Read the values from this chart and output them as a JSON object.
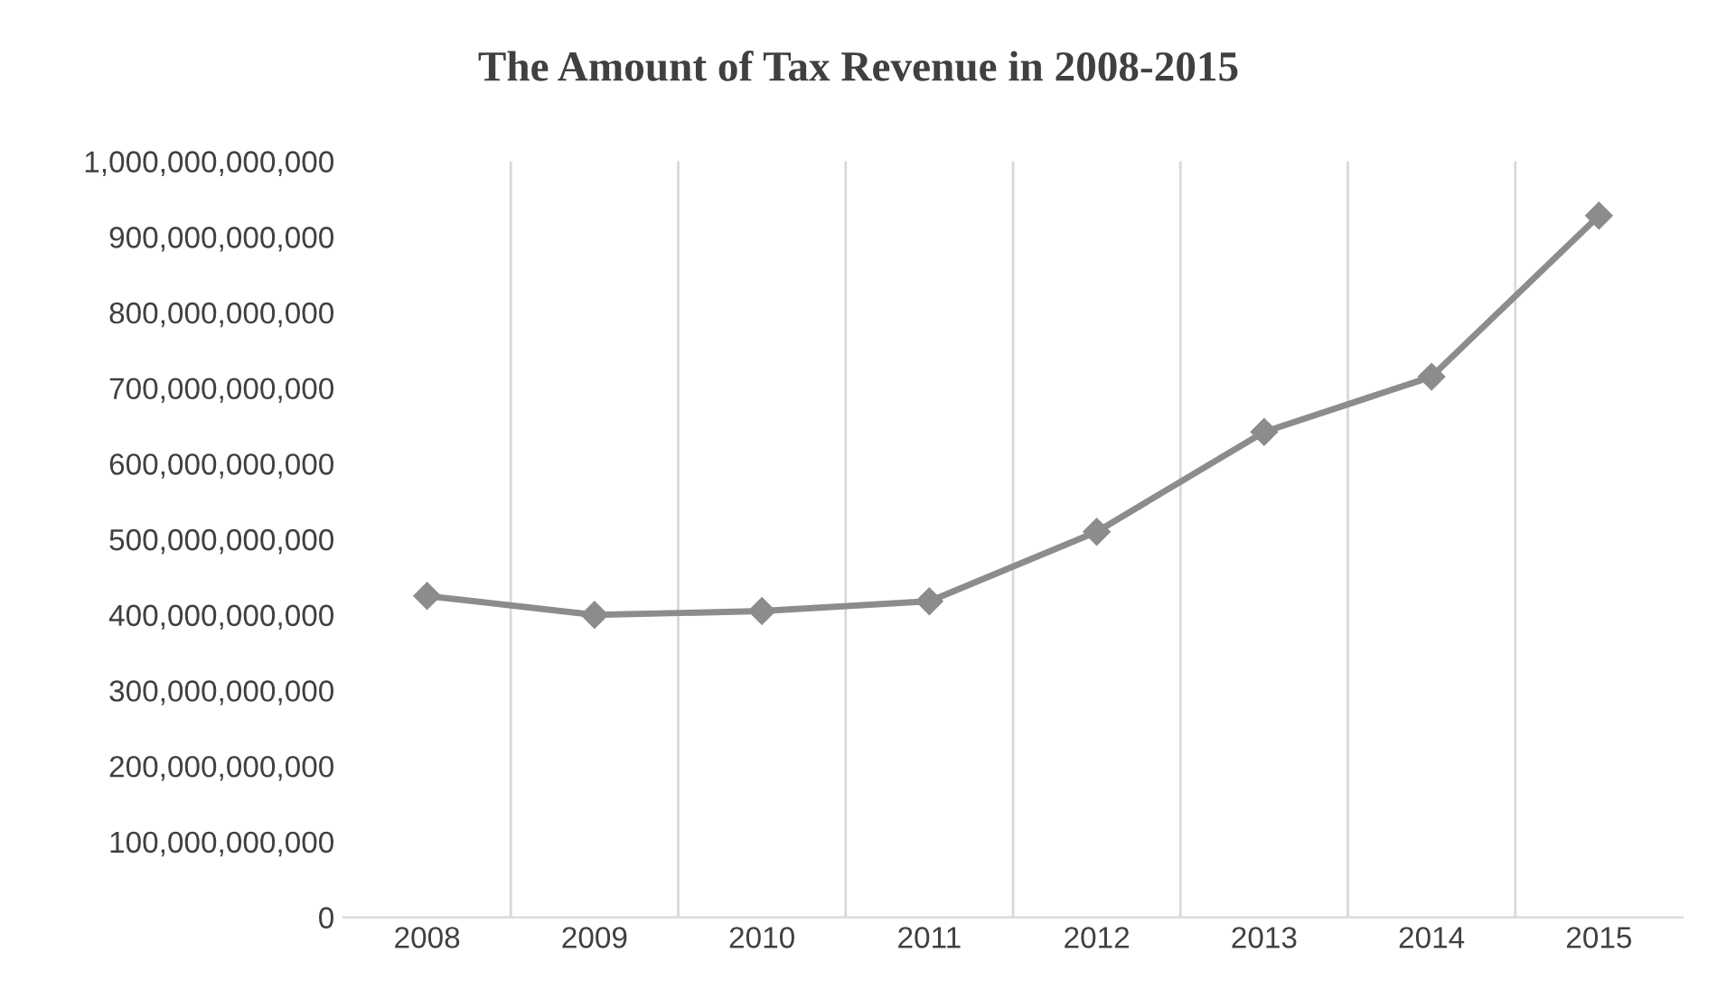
{
  "chart_data": {
    "type": "line",
    "title": "The Amount of Tax Revenue in 2008-2015",
    "categories": [
      "2008",
      "2009",
      "2010",
      "2011",
      "2012",
      "2013",
      "2014",
      "2015"
    ],
    "series": [
      {
        "color": "#8c8c8c",
        "values": [
          425000000000,
          400000000000,
          405000000000,
          418000000000,
          510000000000,
          642000000000,
          715000000000,
          928000000000
        ]
      }
    ],
    "ylim": [
      0,
      1000000000000
    ],
    "yticks": [
      {
        "value": 0,
        "label": "0"
      },
      {
        "value": 100000000000,
        "label": "100,000,000,000"
      },
      {
        "value": 200000000000,
        "label": "200,000,000,000"
      },
      {
        "value": 300000000000,
        "label": "300,000,000,000"
      },
      {
        "value": 400000000000,
        "label": "400,000,000,000"
      },
      {
        "value": 500000000000,
        "label": "500,000,000,000"
      },
      {
        "value": 600000000000,
        "label": "600,000,000,000"
      },
      {
        "value": 700000000000,
        "label": "700,000,000,000"
      },
      {
        "value": 800000000000,
        "label": "800,000,000,000"
      },
      {
        "value": 900000000000,
        "label": "900,000,000,000"
      },
      {
        "value": 1000000000000,
        "label": "1,000,000,000,000"
      }
    ],
    "grid": "x",
    "marker": "diamond",
    "line_style": "solid",
    "legend": false
  }
}
